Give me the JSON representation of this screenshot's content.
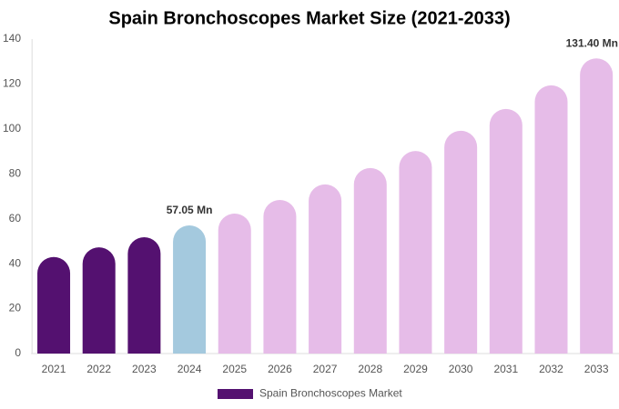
{
  "chart_data": {
    "type": "bar",
    "title": "Spain Bronchoscopes Market Size (2021-2033)",
    "categories": [
      "2021",
      "2022",
      "2023",
      "2024",
      "2025",
      "2026",
      "2027",
      "2028",
      "2029",
      "2030",
      "2031",
      "2032",
      "2033"
    ],
    "series": [
      {
        "name": "Spain Bronchoscopes Market",
        "colors": [
          "#541170",
          "#541170",
          "#541170",
          "#a4c9de",
          "#e6bce8",
          "#e6bce8",
          "#e6bce8",
          "#e6bce8",
          "#e6bce8",
          "#e6bce8",
          "#e6bce8",
          "#e6bce8",
          "#e6bce8"
        ],
        "values": [
          43,
          47.3,
          51.8,
          57.05,
          62.3,
          68.4,
          75.3,
          82.6,
          90.2,
          99.2,
          108.9,
          119.4,
          131.4
        ],
        "value_labels": [
          null,
          null,
          null,
          "57.05 Mn",
          null,
          null,
          null,
          null,
          null,
          null,
          null,
          null,
          "131.40 Mn"
        ]
      }
    ],
    "ylim": [
      0,
      140
    ],
    "yticks": [
      0,
      20,
      40,
      60,
      80,
      100,
      120,
      140
    ],
    "grid": false
  }
}
